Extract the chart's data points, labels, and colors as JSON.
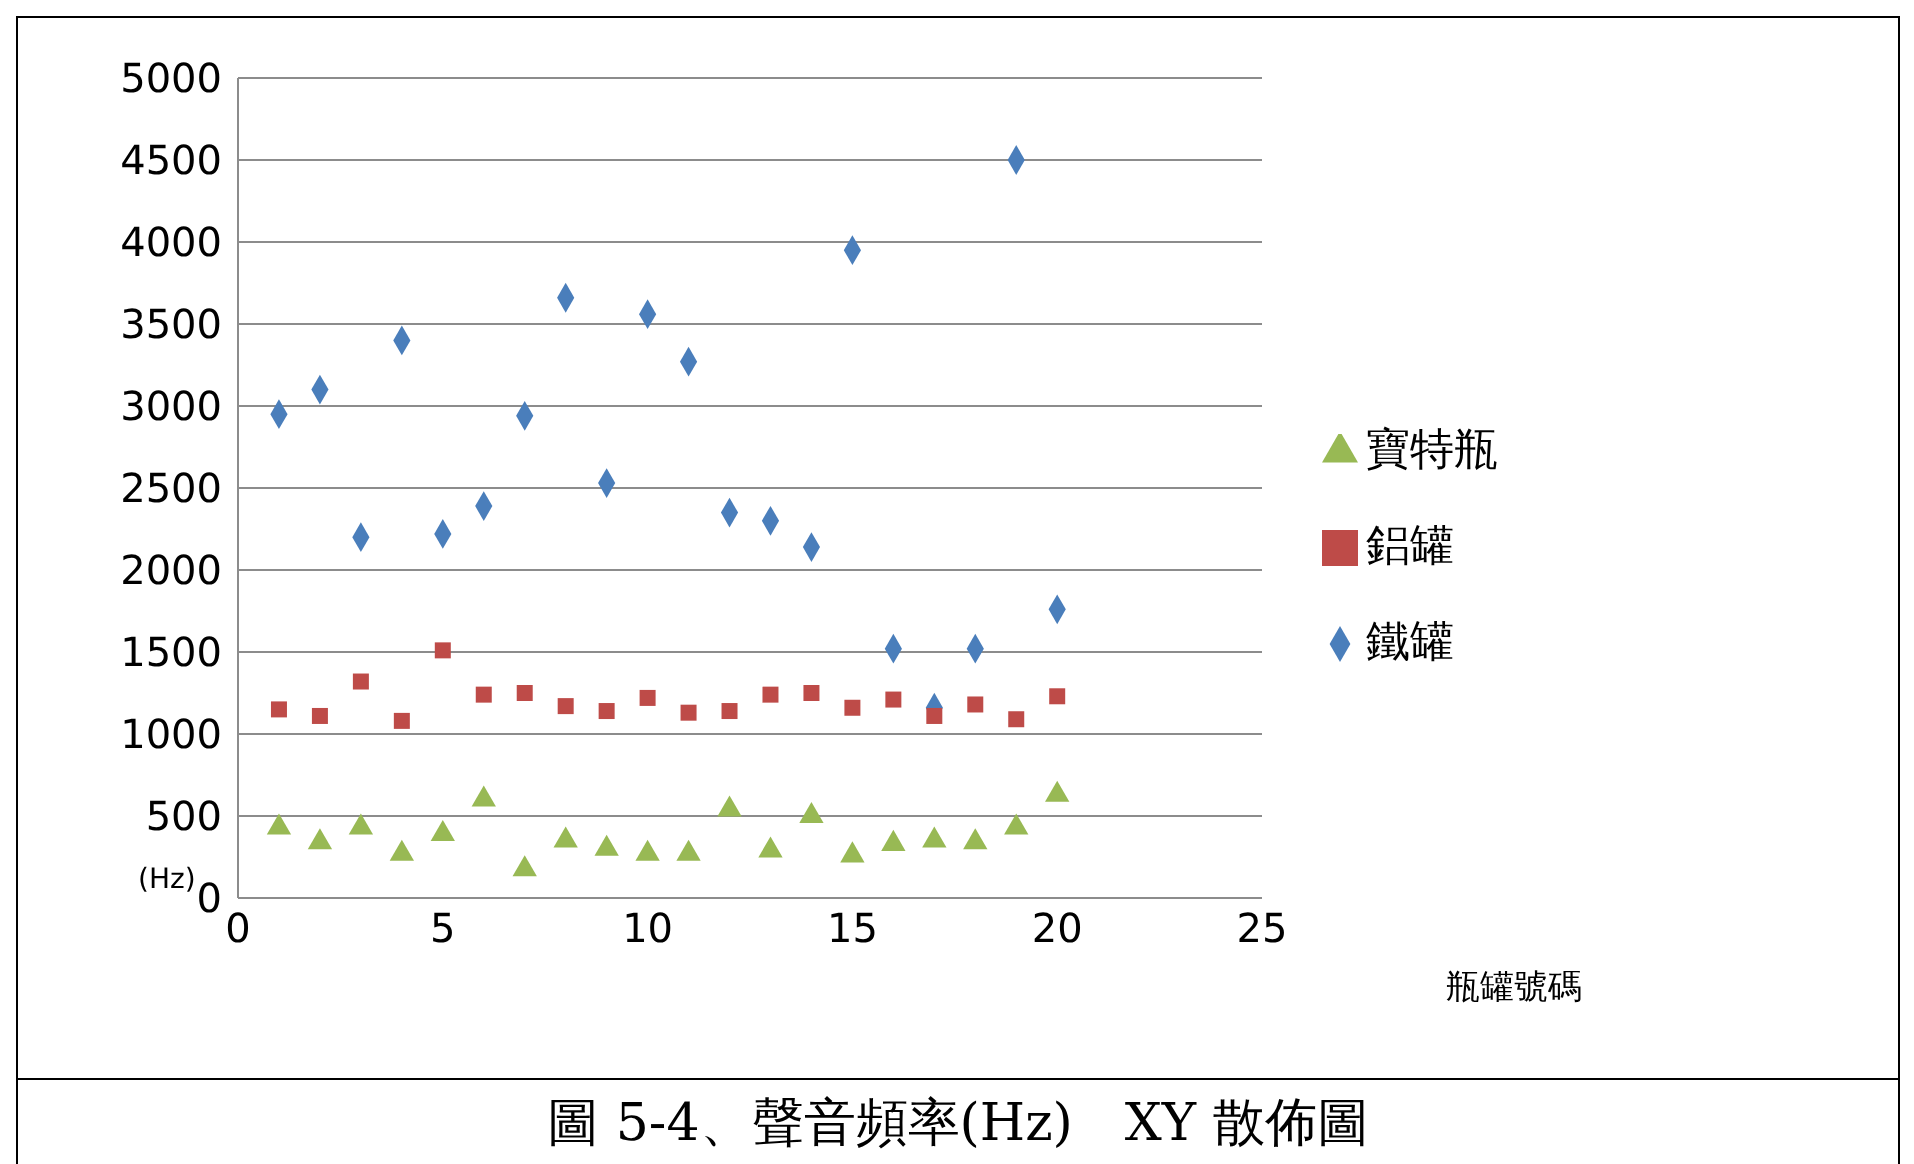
{
  "chart_data": {
    "type": "scatter",
    "title": "圖 5-4、聲音頻率(Hz)　XY 散佈圖",
    "xlabel": "瓶罐號碼",
    "ylabel": "(Hz)",
    "x": [
      1,
      2,
      3,
      4,
      5,
      6,
      7,
      8,
      9,
      10,
      11,
      12,
      13,
      14,
      15,
      16,
      17,
      18,
      19,
      20
    ],
    "series": [
      {
        "name": "鐵罐",
        "color": "#4a7ebb",
        "marker": "diamond",
        "values": [
          2950,
          3100,
          2200,
          3400,
          2220,
          2390,
          2940,
          3660,
          2530,
          3560,
          3270,
          2350,
          2300,
          2140,
          3950,
          1520,
          1160,
          1520,
          4500,
          1760
        ]
      },
      {
        "name": "鋁罐",
        "color": "#be4b48",
        "marker": "square",
        "values": [
          1150,
          1110,
          1320,
          1080,
          1510,
          1240,
          1250,
          1170,
          1140,
          1220,
          1130,
          1140,
          1240,
          1250,
          1160,
          1210,
          1110,
          1180,
          1090,
          1230
        ]
      },
      {
        "name": "寶特瓶",
        "color": "#98b954",
        "marker": "triangle",
        "values": [
          430,
          340,
          430,
          270,
          390,
          600,
          175,
          350,
          300,
          270,
          270,
          540,
          290,
          500,
          260,
          330,
          350,
          340,
          430,
          630
        ]
      }
    ],
    "xlim": [
      0,
      25
    ],
    "xticks": [
      0,
      5,
      10,
      15,
      20,
      25
    ],
    "ylim": [
      0,
      5000
    ],
    "yticks": [
      0,
      500,
      1000,
      1500,
      2000,
      2500,
      3000,
      3500,
      4000,
      4500,
      5000
    ],
    "grid": "y",
    "legend": "right"
  }
}
